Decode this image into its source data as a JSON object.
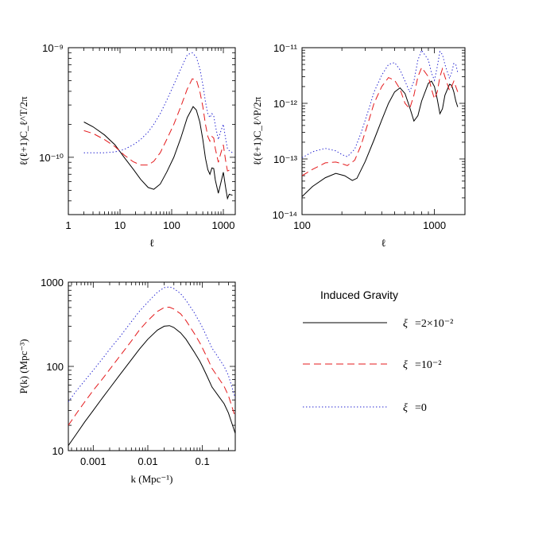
{
  "colors": {
    "solid": "#000000",
    "dashed": "#e41a1c",
    "dotted": "#2020d0"
  },
  "legend": {
    "title": "Induced Gravity",
    "entries": [
      {
        "key": "solid",
        "symbol": "ξ",
        "value": "=2×10⁻²"
      },
      {
        "key": "dashed",
        "symbol": "ξ",
        "value": "=10⁻²"
      },
      {
        "key": "dotted",
        "symbol": "ξ",
        "value": "=0"
      }
    ]
  },
  "chart_data": [
    {
      "id": "ct",
      "type": "line",
      "xscale": "log",
      "yscale": "log",
      "xlim": [
        1,
        1700
      ],
      "ylim": [
        3e-11,
        1e-09
      ],
      "xlabel": "ℓ",
      "ylabel": "ℓ(ℓ+1)C_ℓ^T/2π",
      "xticks": [
        {
          "v": 1,
          "label": "1"
        },
        {
          "v": 10,
          "label": "10"
        },
        {
          "v": 100,
          "label": "100"
        },
        {
          "v": 1000,
          "label": "1000"
        }
      ],
      "yticks": [
        {
          "v": 1e-10,
          "label": "10⁻¹⁰"
        },
        {
          "v": 1e-09,
          "label": "10⁻⁹"
        }
      ],
      "series": [
        {
          "key": "solid",
          "x": [
            2,
            3,
            5,
            8,
            12,
            18,
            25,
            35,
            45,
            60,
            80,
            110,
            150,
            200,
            260,
            300,
            350,
            400,
            450,
            500,
            550,
            600,
            650,
            700,
            800,
            900,
            1000,
            1100,
            1200,
            1300,
            1500
          ],
          "y": [
            2.1e-10,
            1.9e-10,
            1.6e-10,
            1.3e-10,
            1e-10,
            7.8e-11,
            6.3e-11,
            5.3e-11,
            5.1e-11,
            5.7e-11,
            7.3e-11,
            1e-10,
            1.5e-10,
            2.3e-10,
            2.9e-10,
            2.7e-10,
            2.1e-10,
            1.45e-10,
            9.8e-11,
            7.7e-11,
            7e-11,
            8e-11,
            7.9e-11,
            6.2e-11,
            4.7e-11,
            5.9e-11,
            7.3e-11,
            5.4e-11,
            4.2e-11,
            4.6e-11,
            4.5e-11
          ]
        },
        {
          "key": "dashed",
          "x": [
            2,
            3,
            5,
            8,
            12,
            18,
            25,
            35,
            45,
            60,
            80,
            110,
            150,
            200,
            250,
            300,
            350,
            400,
            450,
            500,
            550,
            600,
            650,
            700,
            800,
            900,
            1000,
            1100,
            1200,
            1300,
            1500
          ],
          "y": [
            1.75e-10,
            1.65e-10,
            1.45e-10,
            1.25e-10,
            1.05e-10,
            9.1e-11,
            8.5e-11,
            8.5e-11,
            9.2e-11,
            1.1e-10,
            1.45e-10,
            2e-10,
            2.9e-10,
            4.2e-10,
            5.2e-10,
            5.1e-10,
            4e-10,
            2.9e-10,
            2e-10,
            1.55e-10,
            1.4e-10,
            1.55e-10,
            1.5e-10,
            1.2e-10,
            9e-11,
            1.1e-10,
            1.3e-10,
            9.5e-11,
            7.5e-11,
            7.6e-11,
            7.4e-11
          ]
        },
        {
          "key": "dotted",
          "x": [
            2,
            3,
            5,
            8,
            12,
            18,
            25,
            35,
            45,
            60,
            80,
            110,
            150,
            200,
            250,
            300,
            350,
            400,
            450,
            500,
            550,
            600,
            650,
            700,
            800,
            900,
            1000,
            1100,
            1200,
            1300,
            1500
          ],
          "y": [
            1.1e-10,
            1.1e-10,
            1.1e-10,
            1.12e-10,
            1.18e-10,
            1.3e-10,
            1.45e-10,
            1.7e-10,
            2e-10,
            2.5e-10,
            3.3e-10,
            4.6e-10,
            6.4e-10,
            8.6e-10,
            9e-10,
            8.2e-10,
            6.5e-10,
            4.6e-10,
            3.2e-10,
            2.5e-10,
            2.3e-10,
            2.5e-10,
            2.4e-10,
            1.95e-10,
            1.45e-10,
            1.75e-10,
            2e-10,
            1.5e-10,
            1.2e-10,
            1.15e-10,
            1.1e-10
          ]
        }
      ]
    },
    {
      "id": "cp",
      "type": "line",
      "xscale": "log",
      "yscale": "log",
      "xlim": [
        100,
        1700
      ],
      "ylim": [
        1e-14,
        1e-11
      ],
      "xlabel": "ℓ",
      "ylabel": "ℓ(ℓ+1)C_ℓ^P/2π",
      "xticks": [
        {
          "v": 100,
          "label": "100"
        },
        {
          "v": 1000,
          "label": "1000"
        }
      ],
      "yticks": [
        {
          "v": 1e-14,
          "label": "10⁻¹⁴"
        },
        {
          "v": 1e-13,
          "label": "10⁻¹³"
        },
        {
          "v": 1e-12,
          "label": "10⁻¹²"
        },
        {
          "v": 1e-11,
          "label": "10⁻¹¹"
        }
      ],
      "series": [
        {
          "key": "solid",
          "x": [
            100,
            120,
            150,
            180,
            210,
            240,
            260,
            300,
            350,
            400,
            450,
            500,
            550,
            600,
            650,
            700,
            750,
            800,
            900,
            950,
            1000,
            1050,
            1100,
            1150,
            1200,
            1300,
            1350,
            1400,
            1450,
            1500
          ],
          "y": [
            2.1e-14,
            3.2e-14,
            4.6e-14,
            5.5e-14,
            5e-14,
            4.1e-14,
            4.5e-14,
            9e-14,
            2.2e-13,
            5e-13,
            1e-12,
            1.6e-12,
            1.9e-12,
            1.5e-12,
            8.5e-13,
            4.8e-13,
            6e-13,
            1.1e-12,
            2.3e-12,
            2.5e-12,
            2e-12,
            1.2e-12,
            6.5e-13,
            8e-13,
            1.4e-12,
            2.2e-12,
            2.1e-12,
            1.6e-12,
            1.1e-12,
            8.6e-13
          ]
        },
        {
          "key": "dashed",
          "x": [
            100,
            120,
            150,
            180,
            200,
            220,
            250,
            280,
            320,
            350,
            400,
            450,
            500,
            550,
            600,
            650,
            700,
            750,
            800,
            900,
            950,
            1000,
            1050,
            1100,
            1150,
            1200,
            1300,
            1350,
            1400,
            1450,
            1500
          ],
          "y": [
            5e-14,
            6.5e-14,
            8.5e-14,
            8.8e-14,
            8.2e-14,
            7.6e-14,
            9.5e-14,
            1.8e-13,
            5e-13,
            1e-12,
            2e-12,
            2.9e-12,
            2.6e-12,
            1.8e-12,
            1e-12,
            8e-13,
            1.4e-12,
            3e-12,
            4.4e-12,
            3e-12,
            1.8e-12,
            1.2e-12,
            1.6e-12,
            3e-12,
            4.2e-12,
            3e-12,
            1.7e-12,
            2e-12,
            2.5e-12,
            2e-12,
            1.6e-12
          ]
        },
        {
          "key": "dotted",
          "x": [
            100,
            120,
            150,
            180,
            200,
            220,
            250,
            280,
            320,
            350,
            400,
            450,
            500,
            550,
            600,
            650,
            700,
            750,
            800,
            900,
            950,
            1000,
            1050,
            1100,
            1150,
            1200,
            1300,
            1350,
            1400,
            1450,
            1500
          ],
          "y": [
            1.05e-13,
            1.35e-13,
            1.55e-13,
            1.4e-13,
            1.2e-13,
            1.1e-13,
            1.5e-13,
            3e-13,
            8e-13,
            1.6e-12,
            3.2e-12,
            5e-12,
            5.4e-12,
            4e-12,
            2.5e-12,
            1.6e-12,
            2.5e-12,
            6e-12,
            9e-12,
            6e-12,
            3.5e-12,
            2.6e-12,
            4.5e-12,
            8.5e-12,
            7.5e-12,
            5e-12,
            2.8e-12,
            3.6e-12,
            5.2e-12,
            5e-12,
            3.6e-12
          ]
        }
      ]
    },
    {
      "id": "pk",
      "type": "line",
      "xscale": "log",
      "yscale": "log",
      "xlim": [
        0.00035,
        0.4
      ],
      "ylim": [
        10,
        1000
      ],
      "xlabel": "k (Mpc⁻¹)",
      "ylabel": "P(k) (Mpc⁻³)",
      "xticks": [
        {
          "v": 0.001,
          "label": "0.001"
        },
        {
          "v": 0.01,
          "label": "0.01"
        },
        {
          "v": 0.1,
          "label": "0.1"
        }
      ],
      "yticks": [
        {
          "v": 10,
          "label": "10"
        },
        {
          "v": 100,
          "label": "100"
        },
        {
          "v": 1000,
          "label": "1000"
        }
      ],
      "series": [
        {
          "key": "solid",
          "x": [
            0.00035,
            0.0005,
            0.0007,
            0.001,
            0.0015,
            0.002,
            0.003,
            0.005,
            0.007,
            0.01,
            0.015,
            0.02,
            0.025,
            0.03,
            0.04,
            0.05,
            0.07,
            0.09,
            0.1,
            0.12,
            0.15,
            0.2,
            0.25,
            0.3,
            0.4
          ],
          "y": [
            11.5,
            16,
            22,
            30,
            43,
            55,
            78,
            120,
            160,
            210,
            270,
            300,
            305,
            290,
            250,
            210,
            150,
            115,
            100,
            78,
            57,
            44,
            36,
            28,
            16
          ]
        },
        {
          "key": "dashed",
          "x": [
            0.00035,
            0.0005,
            0.0007,
            0.001,
            0.0015,
            0.002,
            0.003,
            0.005,
            0.007,
            0.01,
            0.015,
            0.02,
            0.025,
            0.03,
            0.04,
            0.05,
            0.07,
            0.09,
            0.1,
            0.12,
            0.15,
            0.2,
            0.25,
            0.3,
            0.4
          ],
          "y": [
            20,
            28,
            38,
            52,
            72,
            92,
            130,
            200,
            270,
            350,
            450,
            500,
            505,
            480,
            420,
            350,
            250,
            190,
            165,
            130,
            95,
            72,
            58,
            45,
            25
          ]
        },
        {
          "key": "dotted",
          "x": [
            0.00035,
            0.0005,
            0.0007,
            0.001,
            0.0015,
            0.002,
            0.003,
            0.005,
            0.007,
            0.01,
            0.015,
            0.02,
            0.025,
            0.03,
            0.04,
            0.05,
            0.07,
            0.09,
            0.1,
            0.12,
            0.15,
            0.2,
            0.25,
            0.3,
            0.4
          ],
          "y": [
            38,
            52,
            68,
            90,
            125,
            160,
            220,
            340,
            450,
            580,
            760,
            860,
            880,
            840,
            730,
            610,
            440,
            330,
            290,
            225,
            165,
            125,
            100,
            78,
            42
          ]
        }
      ]
    }
  ]
}
